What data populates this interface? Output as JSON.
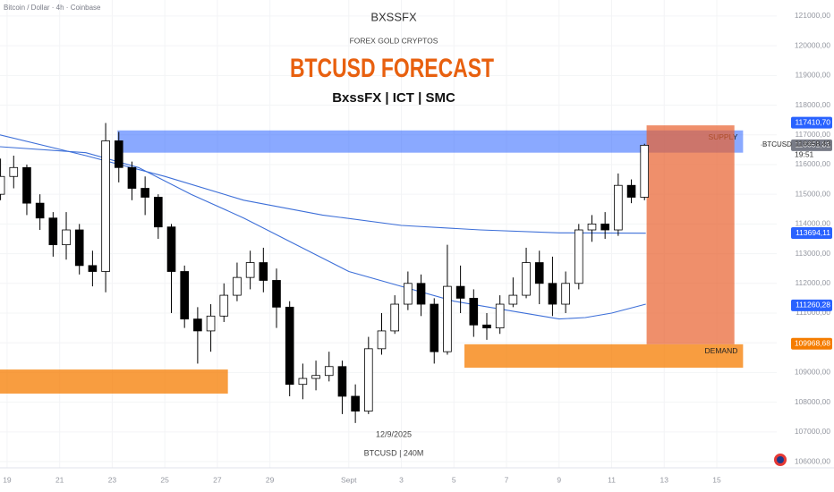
{
  "chart_data": {
    "type": "candlestick",
    "header": "Bitcoin / Dollar · 4h · Coinbase",
    "title": "BTCUSD FORECAST",
    "brand": "BXSSFX",
    "tagline": "FOREX GOLD CRYPTOS",
    "subtitle": "BxssFX | ICT | SMC",
    "annotations": [
      "12/9/2025",
      "BTCUSD | 240M"
    ],
    "xlim": [
      18.73,
      47.6
    ],
    "xticks": [
      {
        "value": 19,
        "label": "19"
      },
      {
        "value": 21,
        "label": "21"
      },
      {
        "value": 23,
        "label": "23"
      },
      {
        "value": 25,
        "label": "25"
      },
      {
        "value": 27,
        "label": "27"
      },
      {
        "value": 29,
        "label": "29"
      },
      {
        "value": 32,
        "label": "Sept"
      },
      {
        "value": 34,
        "label": "3"
      },
      {
        "value": 36,
        "label": "5"
      },
      {
        "value": 38,
        "label": "7"
      },
      {
        "value": 40,
        "label": "9"
      },
      {
        "value": 42,
        "label": "11"
      },
      {
        "value": 44,
        "label": "13"
      },
      {
        "value": 46,
        "label": "15"
      }
    ],
    "ylim": [
      105790,
      121540
    ],
    "yticks": [
      {
        "value": 106000,
        "label": "106000,00"
      },
      {
        "value": 107000,
        "label": "107000,00"
      },
      {
        "value": 108000,
        "label": "108000,00"
      },
      {
        "value": 109000,
        "label": "109000,00"
      },
      {
        "value": 110000,
        "label": "110000,00"
      },
      {
        "value": 111000,
        "label": "111000,00"
      },
      {
        "value": 112000,
        "label": "112000,00"
      },
      {
        "value": 113000,
        "label": "113000,00"
      },
      {
        "value": 114000,
        "label": "114000,00"
      },
      {
        "value": 115000,
        "label": "115000,00"
      },
      {
        "value": 116000,
        "label": "116000,00"
      },
      {
        "value": 117000,
        "label": "117000,00"
      },
      {
        "value": 118000,
        "label": "118000,00"
      },
      {
        "value": 119000,
        "label": "119000,00"
      },
      {
        "value": 120000,
        "label": "120000,00"
      },
      {
        "value": 121000,
        "label": "121000,00"
      }
    ],
    "series": {
      "name": "BTCUSD",
      "up_color": "#ffffff",
      "down_color": "#000000",
      "x": [
        18.75,
        19.25,
        19.75,
        20.25,
        20.75,
        21.25,
        21.75,
        22.25,
        22.75,
        23.25,
        23.75,
        24.25,
        24.75,
        25.25,
        25.75,
        26.25,
        26.75,
        27.25,
        27.75,
        28.25,
        28.75,
        29.25,
        29.75,
        30.25,
        30.75,
        31.25,
        31.75,
        32.25,
        32.75,
        33.25,
        33.75,
        34.25,
        34.75,
        35.25,
        35.75,
        36.25,
        36.75,
        37.25,
        37.75,
        38.25,
        38.75,
        39.25,
        39.75,
        40.25,
        40.75,
        41.25,
        41.75,
        42.25,
        42.75,
        43.25
      ],
      "open": [
        115000,
        115600,
        115900,
        114700,
        114200,
        113300,
        113800,
        112600,
        112400,
        116800,
        115900,
        115200,
        114900,
        113900,
        112400,
        110800,
        110400,
        110900,
        111600,
        112200,
        112700,
        112100,
        111200,
        108600,
        108800,
        108900,
        109200,
        108200,
        107700,
        109800,
        110400,
        111300,
        112000,
        111300,
        109700,
        111900,
        111500,
        110600,
        110500,
        111300,
        111600,
        112700,
        112000,
        111300,
        112000,
        113800,
        114000,
        113800,
        115300,
        114900
      ],
      "high": [
        116200,
        116300,
        116000,
        115000,
        114400,
        114400,
        114000,
        113100,
        117400,
        117100,
        116100,
        115600,
        115000,
        114000,
        112600,
        111200,
        111300,
        112000,
        112700,
        113100,
        113200,
        112500,
        111400,
        109300,
        109400,
        109700,
        109400,
        108600,
        110200,
        111000,
        111600,
        112400,
        112300,
        111500,
        113300,
        112600,
        111800,
        111000,
        111600,
        112200,
        113200,
        113100,
        112900,
        112400,
        114000,
        114300,
        114400,
        115700,
        115500,
        116700
      ],
      "low": [
        114800,
        115200,
        114300,
        113800,
        112900,
        112800,
        112300,
        111900,
        111700,
        115400,
        114800,
        114300,
        113500,
        111000,
        110500,
        109300,
        109700,
        110700,
        111400,
        111800,
        111700,
        110500,
        108200,
        108100,
        108400,
        108700,
        107600,
        107300,
        107600,
        109600,
        110300,
        111100,
        110900,
        109300,
        109600,
        111000,
        110200,
        110100,
        110300,
        111200,
        111500,
        111300,
        110900,
        111000,
        111800,
        113400,
        113500,
        113600,
        114700,
        114800
      ],
      "close": [
        115600,
        115900,
        114700,
        114200,
        113300,
        113800,
        112600,
        112400,
        116800,
        115900,
        115200,
        114900,
        113900,
        112400,
        110800,
        110400,
        110900,
        111600,
        112200,
        112700,
        112100,
        111200,
        108600,
        108800,
        108900,
        109200,
        108200,
        107700,
        109800,
        110400,
        111300,
        112000,
        111300,
        109700,
        111900,
        111500,
        110600,
        110500,
        111300,
        111600,
        112700,
        112000,
        111300,
        112000,
        113800,
        114000,
        113800,
        115300,
        114900,
        116650
      ]
    },
    "moving_averages": [
      {
        "color": "#3d6fd8",
        "x": [
          18.73,
          22,
          25,
          28,
          31,
          34,
          37,
          40,
          43.3
        ],
        "values": [
          117000,
          116300,
          115600,
          114800,
          114300,
          113950,
          113800,
          113700,
          113690
        ]
      },
      {
        "color": "#3d6fd8",
        "x": [
          18.73,
          22,
          24,
          26,
          28,
          30,
          32,
          34,
          36,
          38,
          40,
          41,
          42,
          43.3
        ],
        "values": [
          116600,
          116400,
          115900,
          115000,
          114200,
          113300,
          112400,
          111900,
          111400,
          111100,
          110800,
          110850,
          111000,
          111300
        ]
      }
    ],
    "zones": [
      {
        "name": "SUPPLY",
        "color": "#2962ff",
        "x": [
          23.2,
          47
        ],
        "y": [
          116400,
          117150
        ]
      },
      {
        "name": "DEMAND",
        "color": "#f57c00",
        "x": [
          36.4,
          47
        ],
        "y": [
          109160,
          109950
        ]
      },
      {
        "color": "#f57c00",
        "x": [
          18.73,
          27.4
        ],
        "y": [
          108290,
          109100
        ]
      }
    ],
    "position": {
      "color": "#e8602c",
      "x": [
        43.33,
        46.67
      ],
      "y": [
        109950,
        117320
      ]
    },
    "price_tags": [
      {
        "value": 117410.7,
        "label": "117410,70",
        "color": "#2962ff"
      },
      {
        "value": 116651.81,
        "label": "116651,81",
        "color": "#787b86"
      },
      {
        "value": 113694.11,
        "label": "113694,11",
        "color": "#2962ff"
      },
      {
        "value": 111260.28,
        "label": "111260,28",
        "color": "#2962ff"
      },
      {
        "value": 109968.68,
        "label": "109968,68",
        "color": "#f57c00"
      }
    ],
    "last_price": {
      "value": 116658.43,
      "label": "116658,43",
      "symbol": "BTCUSD",
      "countdown": "19:51"
    }
  }
}
